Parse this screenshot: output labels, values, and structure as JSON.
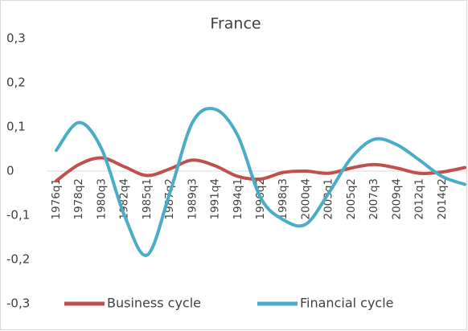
{
  "chart_data": {
    "type": "line",
    "title": "France",
    "categories": [
      "1976q1",
      "1978q2",
      "1980q3",
      "1982q4",
      "1985q1",
      "1987q2",
      "1989q3",
      "1991q4",
      "1994q1",
      "1996q2",
      "1998q3",
      "2000q4",
      "2003q1",
      "2005q2",
      "2007q3",
      "2009q4",
      "2012q1",
      "2014q2",
      null
    ],
    "series": [
      {
        "name": "Business cycle",
        "color": "#c0504d",
        "values": [
          -0.022,
          0.015,
          0.03,
          0.01,
          -0.01,
          0.005,
          0.025,
          0.012,
          -0.012,
          -0.018,
          -0.003,
          0.0,
          -0.005,
          0.007,
          0.015,
          0.007,
          -0.005,
          -0.002,
          0.008
        ]
      },
      {
        "name": "Financial cycle",
        "color": "#4bacc6",
        "values": [
          0.047,
          0.11,
          0.05,
          -0.1,
          -0.19,
          -0.05,
          0.11,
          0.14,
          0.08,
          -0.06,
          -0.11,
          -0.12,
          -0.05,
          0.03,
          0.072,
          0.06,
          0.025,
          -0.012,
          -0.03
        ]
      }
    ],
    "ylim": [
      -0.3,
      0.3
    ],
    "yticks": [
      {
        "value": -0.3,
        "label": "-0,3"
      },
      {
        "value": -0.2,
        "label": "-0,2"
      },
      {
        "value": -0.1,
        "label": "-0,1"
      },
      0,
      {
        "value": 0.1,
        "label": "0,1"
      },
      {
        "value": 0.2,
        "label": "0,2"
      },
      {
        "value": 0.3,
        "label": "0,3"
      }
    ],
    "grid": false,
    "legend": "bottom"
  }
}
